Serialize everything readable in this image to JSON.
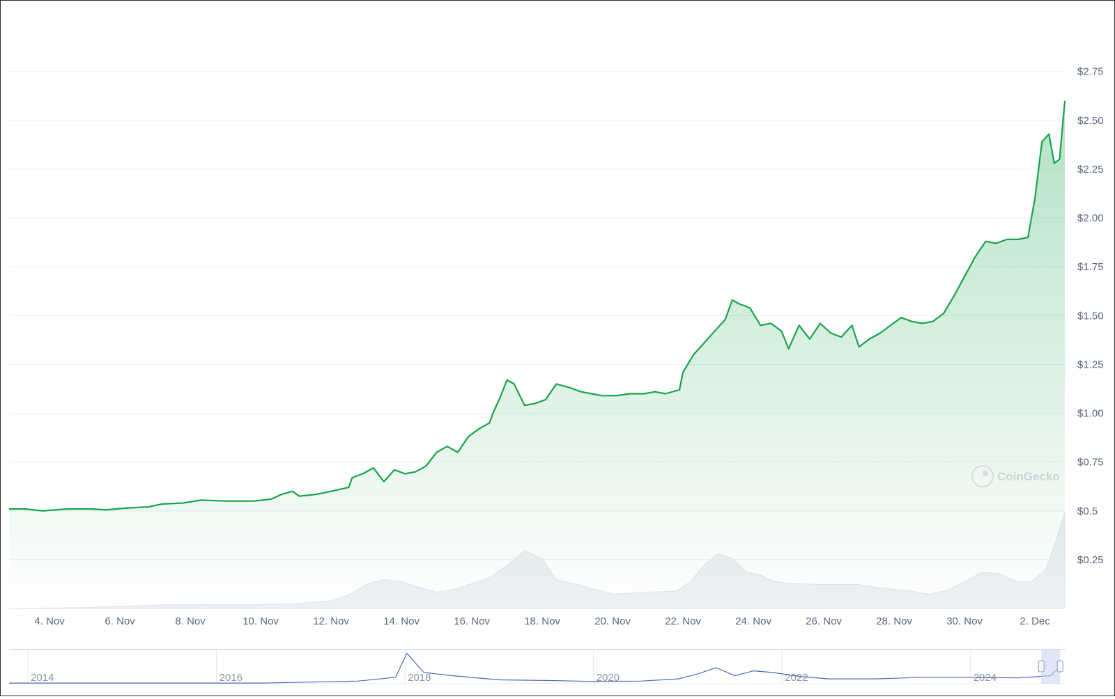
{
  "chart_data": {
    "type": "area",
    "provider": "CoinGecko",
    "currency_prefix": "$",
    "y_ticks": [
      {
        "value": 0.25,
        "label": "$0.25"
      },
      {
        "value": 0.5,
        "label": "$0.5"
      },
      {
        "value": 0.75,
        "label": "$0.75"
      },
      {
        "value": 1.0,
        "label": "$1.00"
      },
      {
        "value": 1.25,
        "label": "$1.25"
      },
      {
        "value": 1.5,
        "label": "$1.50"
      },
      {
        "value": 1.75,
        "label": "$1.75"
      },
      {
        "value": 2.0,
        "label": "$2.00"
      },
      {
        "value": 2.25,
        "label": "$2.25"
      },
      {
        "value": 2.5,
        "label": "$2.50"
      },
      {
        "value": 2.75,
        "label": "$2.75"
      }
    ],
    "ylim": [
      0.0,
      2.97
    ],
    "x_ticks": [
      {
        "day": 4,
        "label": "4. Nov"
      },
      {
        "day": 6,
        "label": "6. Nov"
      },
      {
        "day": 8,
        "label": "8. Nov"
      },
      {
        "day": 10,
        "label": "10. Nov"
      },
      {
        "day": 12,
        "label": "12. Nov"
      },
      {
        "day": 14,
        "label": "14. Nov"
      },
      {
        "day": 16,
        "label": "16. Nov"
      },
      {
        "day": 18,
        "label": "18. Nov"
      },
      {
        "day": 20,
        "label": "20. Nov"
      },
      {
        "day": 22,
        "label": "22. Nov"
      },
      {
        "day": 24,
        "label": "24. Nov"
      },
      {
        "day": 26,
        "label": "26. Nov"
      },
      {
        "day": 28,
        "label": "28. Nov"
      },
      {
        "day": 30,
        "label": "30. Nov"
      },
      {
        "day": 32,
        "label": "2. Dec"
      }
    ],
    "xlim": [
      2.85,
      32.85
    ],
    "series": [
      {
        "type": "line",
        "color": "#16a34a",
        "points": [
          [
            2.85,
            0.51
          ],
          [
            3.3,
            0.51
          ],
          [
            3.8,
            0.5
          ],
          [
            4.5,
            0.51
          ],
          [
            5.2,
            0.51
          ],
          [
            5.6,
            0.505
          ],
          [
            6.2,
            0.515
          ],
          [
            6.8,
            0.52
          ],
          [
            7.2,
            0.535
          ],
          [
            7.8,
            0.54
          ],
          [
            8.3,
            0.555
          ],
          [
            9.0,
            0.55
          ],
          [
            9.8,
            0.55
          ],
          [
            10.3,
            0.56
          ],
          [
            10.6,
            0.585
          ],
          [
            10.9,
            0.6
          ],
          [
            11.1,
            0.575
          ],
          [
            11.6,
            0.585
          ],
          [
            12.0,
            0.6
          ],
          [
            12.5,
            0.62
          ],
          [
            12.6,
            0.67
          ],
          [
            12.9,
            0.69
          ],
          [
            13.2,
            0.72
          ],
          [
            13.5,
            0.65
          ],
          [
            13.8,
            0.71
          ],
          [
            14.1,
            0.69
          ],
          [
            14.4,
            0.7
          ],
          [
            14.7,
            0.73
          ],
          [
            15.0,
            0.8
          ],
          [
            15.3,
            0.83
          ],
          [
            15.6,
            0.8
          ],
          [
            15.9,
            0.88
          ],
          [
            16.2,
            0.92
          ],
          [
            16.5,
            0.95
          ],
          [
            16.6,
            1.0
          ],
          [
            16.8,
            1.08
          ],
          [
            17.0,
            1.17
          ],
          [
            17.2,
            1.15
          ],
          [
            17.5,
            1.04
          ],
          [
            17.8,
            1.05
          ],
          [
            18.1,
            1.07
          ],
          [
            18.4,
            1.15
          ],
          [
            18.8,
            1.13
          ],
          [
            19.1,
            1.11
          ],
          [
            19.4,
            1.1
          ],
          [
            19.7,
            1.09
          ],
          [
            20.1,
            1.09
          ],
          [
            20.5,
            1.1
          ],
          [
            20.9,
            1.1
          ],
          [
            21.2,
            1.11
          ],
          [
            21.5,
            1.1
          ],
          [
            21.9,
            1.12
          ],
          [
            22.0,
            1.21
          ],
          [
            22.3,
            1.3
          ],
          [
            22.6,
            1.36
          ],
          [
            22.9,
            1.42
          ],
          [
            23.2,
            1.48
          ],
          [
            23.4,
            1.58
          ],
          [
            23.6,
            1.56
          ],
          [
            23.9,
            1.54
          ],
          [
            24.2,
            1.45
          ],
          [
            24.5,
            1.46
          ],
          [
            24.8,
            1.42
          ],
          [
            25.0,
            1.33
          ],
          [
            25.3,
            1.45
          ],
          [
            25.6,
            1.38
          ],
          [
            25.9,
            1.46
          ],
          [
            26.2,
            1.41
          ],
          [
            26.5,
            1.39
          ],
          [
            26.8,
            1.45
          ],
          [
            27.0,
            1.34
          ],
          [
            27.3,
            1.38
          ],
          [
            27.6,
            1.41
          ],
          [
            27.9,
            1.45
          ],
          [
            28.2,
            1.49
          ],
          [
            28.5,
            1.47
          ],
          [
            28.8,
            1.46
          ],
          [
            29.1,
            1.47
          ],
          [
            29.4,
            1.51
          ],
          [
            29.7,
            1.6
          ],
          [
            30.0,
            1.7
          ],
          [
            30.3,
            1.8
          ],
          [
            30.6,
            1.88
          ],
          [
            30.9,
            1.87
          ],
          [
            31.2,
            1.89
          ],
          [
            31.5,
            1.89
          ],
          [
            31.8,
            1.9
          ],
          [
            32.0,
            2.1
          ],
          [
            32.2,
            2.39
          ],
          [
            32.4,
            2.43
          ],
          [
            32.55,
            2.28
          ],
          [
            32.7,
            2.3
          ],
          [
            32.85,
            2.6
          ]
        ]
      },
      {
        "type": "volume",
        "color": "#e9ecf1",
        "points": [
          [
            2.85,
            0.0
          ],
          [
            5.0,
            0.01
          ],
          [
            7.5,
            0.04
          ],
          [
            10.0,
            0.04
          ],
          [
            11.0,
            0.05
          ],
          [
            12.0,
            0.08
          ],
          [
            12.5,
            0.14
          ],
          [
            13.0,
            0.25
          ],
          [
            13.5,
            0.3
          ],
          [
            14.0,
            0.28
          ],
          [
            14.5,
            0.22
          ],
          [
            15.0,
            0.17
          ],
          [
            15.5,
            0.2
          ],
          [
            16.0,
            0.26
          ],
          [
            16.5,
            0.32
          ],
          [
            17.0,
            0.45
          ],
          [
            17.5,
            0.6
          ],
          [
            18.0,
            0.52
          ],
          [
            18.4,
            0.3
          ],
          [
            19.0,
            0.25
          ],
          [
            19.5,
            0.2
          ],
          [
            20.0,
            0.15
          ],
          [
            21.0,
            0.17
          ],
          [
            21.8,
            0.18
          ],
          [
            22.2,
            0.28
          ],
          [
            22.6,
            0.45
          ],
          [
            23.0,
            0.57
          ],
          [
            23.4,
            0.52
          ],
          [
            23.8,
            0.38
          ],
          [
            24.2,
            0.35
          ],
          [
            24.6,
            0.28
          ],
          [
            25.0,
            0.26
          ],
          [
            26.0,
            0.25
          ],
          [
            27.0,
            0.25
          ],
          [
            27.5,
            0.22
          ],
          [
            28.0,
            0.2
          ],
          [
            28.5,
            0.18
          ],
          [
            29.0,
            0.15
          ],
          [
            29.5,
            0.19
          ],
          [
            30.0,
            0.28
          ],
          [
            30.5,
            0.38
          ],
          [
            31.0,
            0.36
          ],
          [
            31.5,
            0.28
          ],
          [
            31.9,
            0.28
          ],
          [
            32.3,
            0.4
          ],
          [
            32.6,
            0.7
          ],
          [
            32.85,
            1.0
          ]
        ]
      },
      {
        "type": "navigator",
        "color": "#4a6bb0",
        "points": [
          [
            2013.8,
            0.02
          ],
          [
            2015.0,
            0.02
          ],
          [
            2016.5,
            0.02
          ],
          [
            2017.0,
            0.05
          ],
          [
            2017.5,
            0.08
          ],
          [
            2017.9,
            0.2
          ],
          [
            2018.02,
            0.95
          ],
          [
            2018.2,
            0.35
          ],
          [
            2018.5,
            0.25
          ],
          [
            2019.0,
            0.12
          ],
          [
            2019.5,
            0.1
          ],
          [
            2020.0,
            0.07
          ],
          [
            2020.5,
            0.08
          ],
          [
            2020.9,
            0.15
          ],
          [
            2021.1,
            0.3
          ],
          [
            2021.3,
            0.5
          ],
          [
            2021.5,
            0.25
          ],
          [
            2021.7,
            0.4
          ],
          [
            2021.9,
            0.35
          ],
          [
            2022.2,
            0.22
          ],
          [
            2022.5,
            0.15
          ],
          [
            2023.0,
            0.15
          ],
          [
            2023.5,
            0.2
          ],
          [
            2024.0,
            0.2
          ],
          [
            2024.5,
            0.18
          ],
          [
            2024.85,
            0.25
          ],
          [
            2024.95,
            0.55
          ]
        ]
      }
    ],
    "navigator": {
      "xlim": [
        2013.8,
        2025.0
      ],
      "ticks": [
        {
          "year": 2014,
          "label": "2014"
        },
        {
          "year": 2016,
          "label": "2016"
        },
        {
          "year": 2018,
          "label": "2018"
        },
        {
          "year": 2020,
          "label": "2020"
        },
        {
          "year": 2022,
          "label": "2022"
        },
        {
          "year": 2024,
          "label": "2024"
        }
      ],
      "selection": [
        2024.75,
        2024.95
      ]
    },
    "grid": true,
    "fill_color": "#16a34a"
  }
}
